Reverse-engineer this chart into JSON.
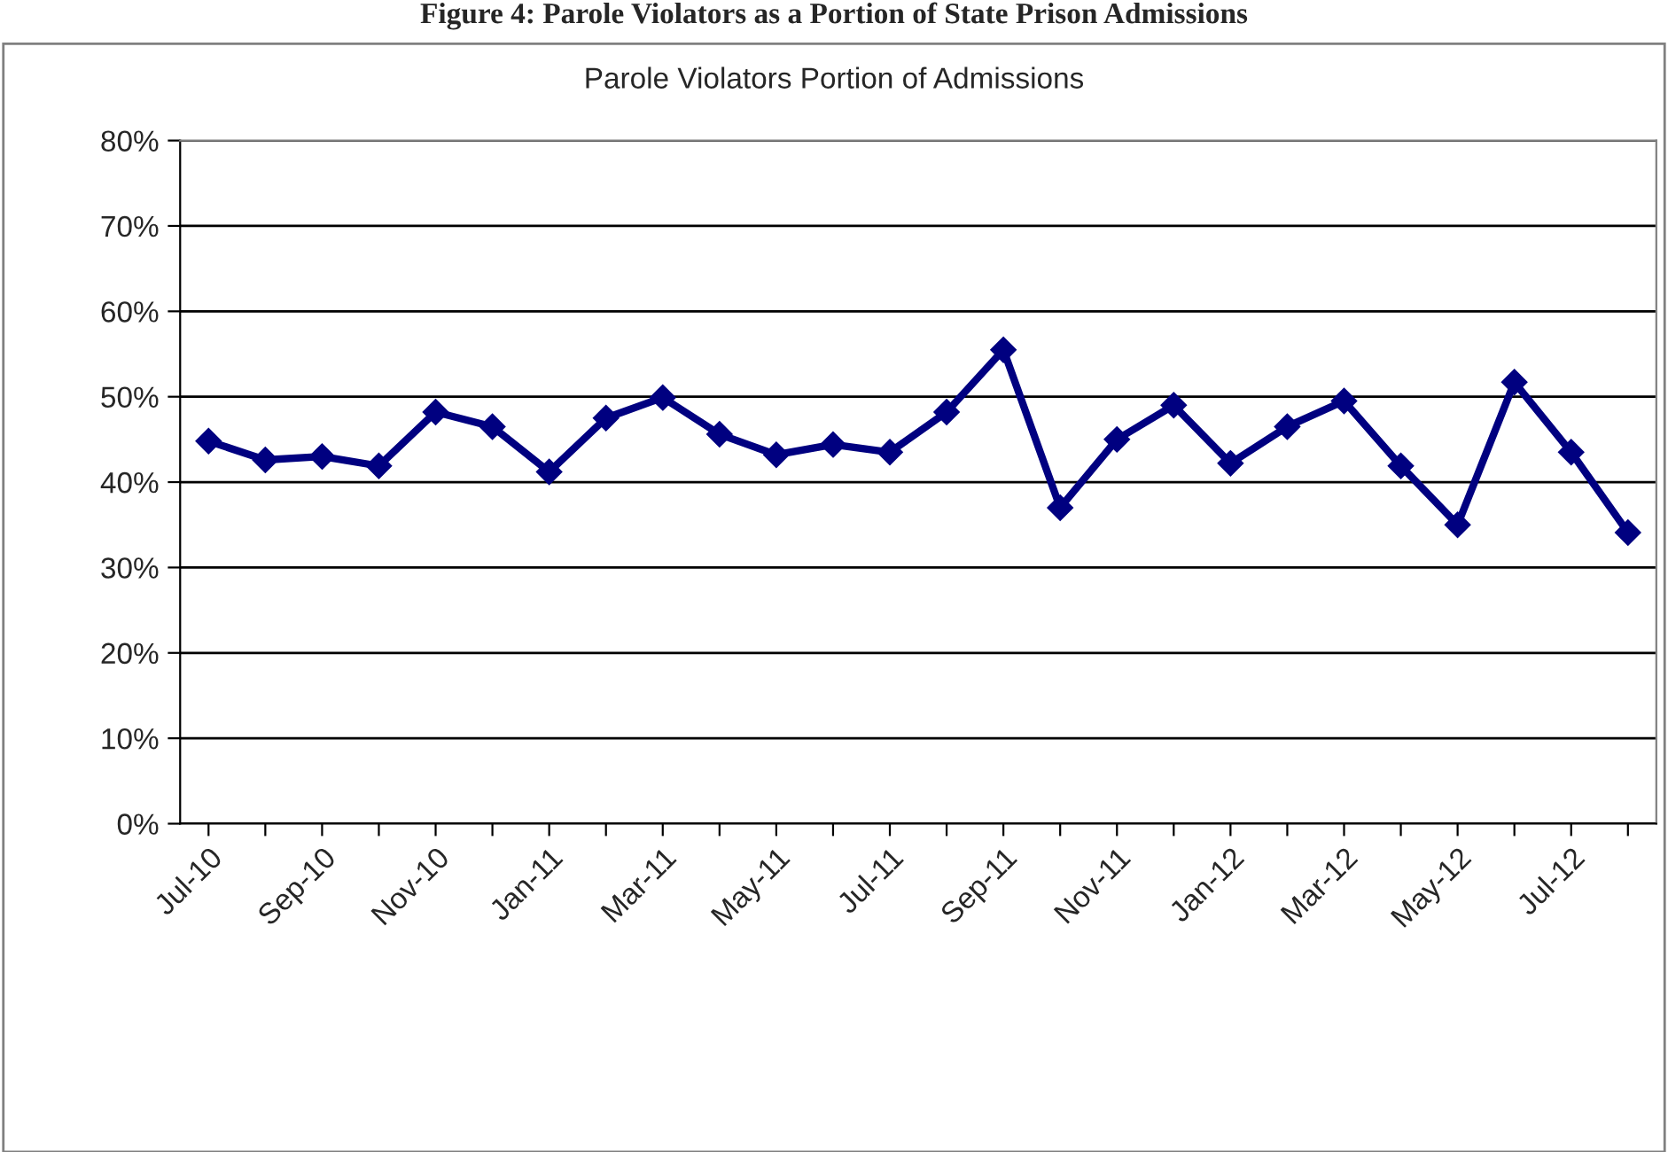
{
  "chart_data": {
    "type": "line",
    "title": "Figure 4: Parole Violators as a Portion of State Prison Admissions",
    "subtitle": "Parole Violators Portion of Admissions",
    "categories": [
      "Jul-10",
      null,
      "Sep-10",
      null,
      "Nov-10",
      null,
      "Jan-11",
      null,
      "Mar-11",
      null,
      "May-11",
      null,
      "Jul-11",
      null,
      "Sep-11",
      null,
      "Nov-11",
      null,
      "Jan-12",
      null,
      "Mar-12",
      null,
      "May-12",
      null,
      "Jul-12",
      null
    ],
    "series": [
      {
        "color": "#000080",
        "values": [
          44.8,
          42.6,
          43.0,
          41.9,
          48.2,
          46.5,
          41.2,
          47.5,
          49.9,
          45.6,
          43.2,
          44.4,
          43.5,
          48.2,
          55.5,
          37.0,
          45.0,
          49.0,
          42.2,
          46.5,
          49.5,
          41.9,
          35.0,
          51.7,
          43.5,
          34.1
        ]
      }
    ],
    "ylim": [
      0,
      80
    ],
    "yticks": [
      {
        "value": 0,
        "label": "0%"
      },
      {
        "value": 10,
        "label": "10%"
      },
      {
        "value": 20,
        "label": "20%"
      },
      {
        "value": 30,
        "label": "30%"
      },
      {
        "value": 40,
        "label": "40%"
      },
      {
        "value": 50,
        "label": "50%"
      },
      {
        "value": 60,
        "label": "60%"
      },
      {
        "value": 70,
        "label": "70%"
      },
      {
        "value": 80,
        "label": "80%"
      }
    ],
    "grid": "y",
    "marker": "diamond",
    "line_style": "solid"
  }
}
